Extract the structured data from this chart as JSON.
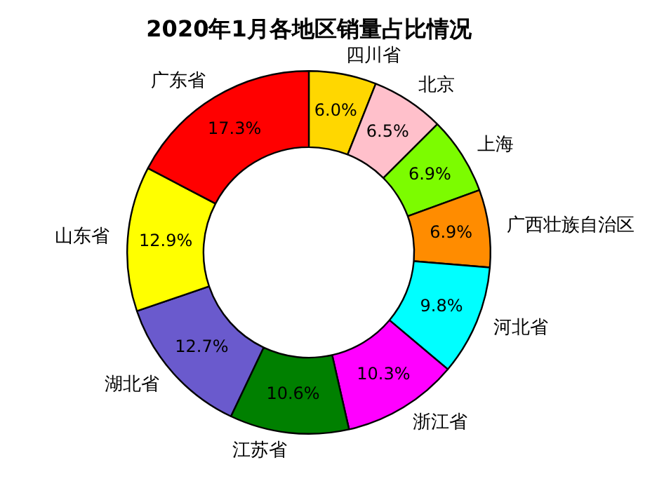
{
  "chart_data": {
    "type": "donut",
    "title": "2020年1月各地区销量占比情况",
    "categories": [
      "四川省",
      "北京",
      "上海",
      "广西壮族自治区",
      "河北省",
      "浙江省",
      "江苏省",
      "湖北省",
      "山东省",
      "广东省"
    ],
    "values": [
      6.0,
      6.5,
      6.9,
      6.9,
      9.8,
      10.3,
      10.6,
      12.7,
      12.9,
      17.3
    ],
    "value_labels": [
      "6.0%",
      "6.5%",
      "6.9%",
      "6.9%",
      "9.8%",
      "10.3%",
      "10.6%",
      "12.7%",
      "12.9%",
      "17.3%"
    ],
    "colors": [
      "#ffd700",
      "#ffc0cb",
      "#7cfc00",
      "#ff8c00",
      "#00ffff",
      "#ff00ff",
      "#008000",
      "#6a5acd",
      "#ffff00",
      "#ff0000"
    ],
    "legend": false
  }
}
